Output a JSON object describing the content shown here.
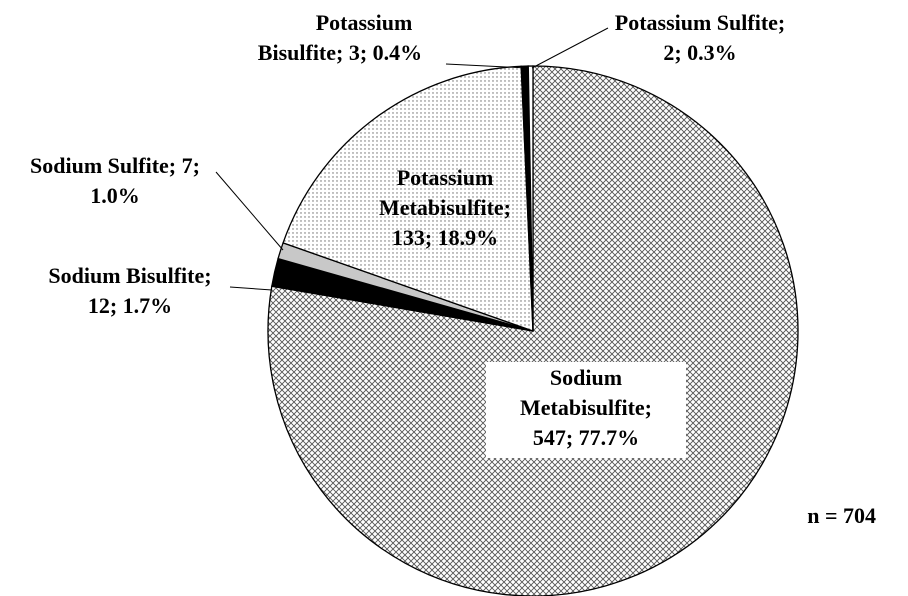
{
  "chart_data": {
    "type": "pie",
    "values": [
      547,
      12,
      7,
      133,
      3,
      2
    ],
    "value_labels": [
      [
        "Sodium",
        "Metabisulfite;",
        "547; 77.7%"
      ],
      [
        "Sodium Bisulfite;",
        "12; 1.7%"
      ],
      [
        "Sodium Sulfite; 7;",
        "1.0%"
      ],
      [
        "Potassium",
        "Metabisulfite;",
        "133; 18.9%"
      ],
      [
        "Potassium",
        "Bisulfite; 3; 0.4%"
      ],
      [
        "Potassium Sulfite;",
        "2; 0.3%"
      ]
    ],
    "colors": [
      "#b0b0b0",
      "#000000",
      "#c8c8c8",
      "#9a9a9a",
      "#000000",
      "#ffffff"
    ],
    "patterns": [
      "crosshatch",
      "solid",
      "solid",
      "dots",
      "solid",
      "solid"
    ],
    "annotation": "n = 704"
  }
}
